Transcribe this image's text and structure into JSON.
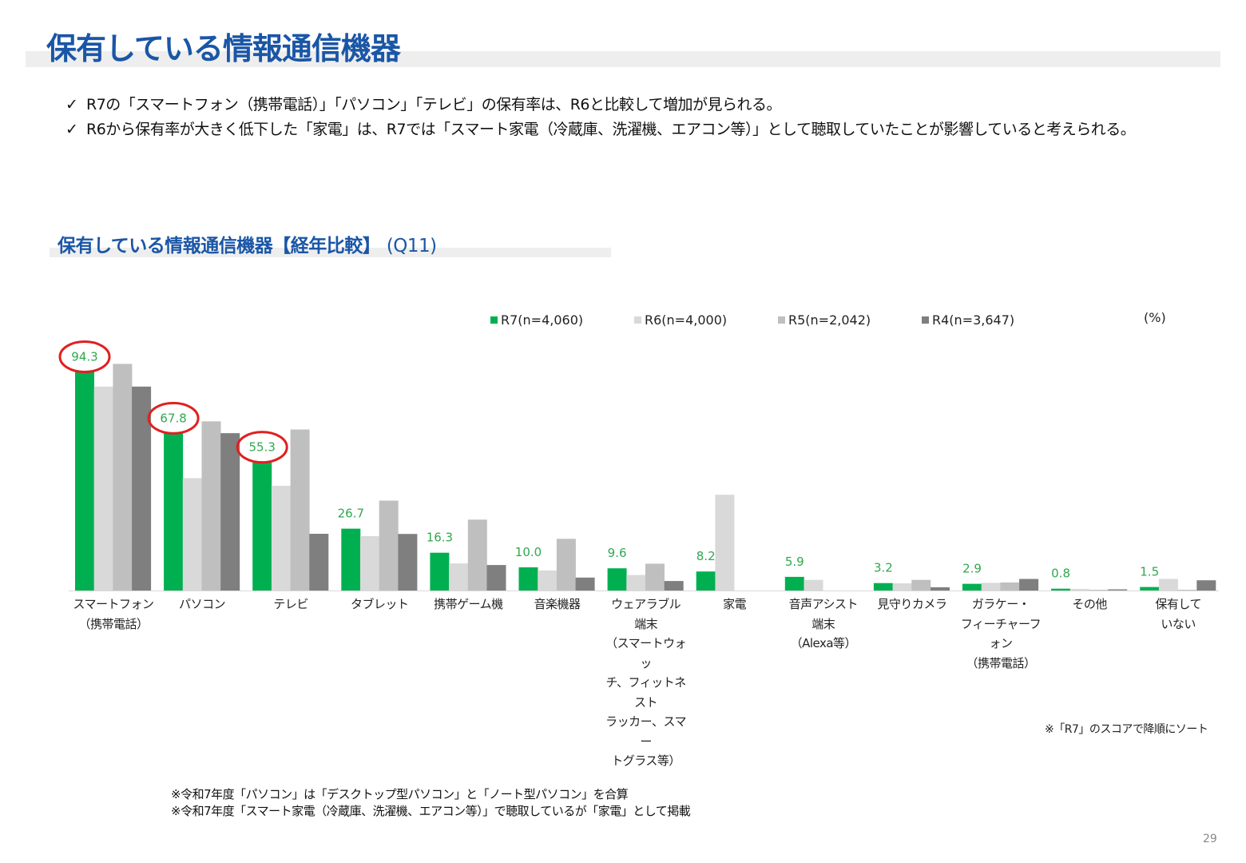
{
  "page": {
    "title": "保有している情報通信機器",
    "bullets": [
      "R7の「スマートフォン（携帯電話）」「パソコン」「テレビ」の保有率は、R6と比較して増加が見られる。",
      "R6から保有率が大きく低下した「家電」は、R7では「スマート家電（冷蔵庫、洗濯機、エアコン等）」として聴取していたことが影響していると考えられる。"
    ],
    "check_glyph": "✓",
    "section_title": "保有している情報通信機器【経年比較】",
    "section_question": "(Q11)",
    "unit": "(%)",
    "sort_note": "※「R7」のスコアで降順にソート",
    "footnotes": [
      "※令和7年度「パソコン」は「デスクトップ型パソコン」と「ノート型パソコン」を合算",
      "※令和7年度「スマート家電（冷蔵庫、洗濯機、エアコン等）」で聴取しているが「家電」として掲載"
    ],
    "page_number": "29"
  },
  "colors": {
    "title": "#1a56a6",
    "highlight_circle": "#e02020",
    "data_label": "#2fa84f"
  },
  "chart_data": {
    "type": "bar",
    "categories": [
      "スマートフォン\n（携帯電話）",
      "パソコン",
      "テレビ",
      "タブレット",
      "携帯ゲーム機",
      "音楽機器",
      "ウェアラブル\n端末\n（スマートウォッ\nチ、フィットネスト\nラッカー、スマー\nトグラス等）",
      "家電",
      "音声アシスト\n端末\n（Alexa等）",
      "見守りカメラ",
      "ガラケー・\nフィーチャーフォン\n（携帯電話）",
      "その他",
      "保有して\nいない"
    ],
    "series": [
      {
        "name": "R7(n=4,060)",
        "color": "#00b050",
        "values": [
          94.3,
          67.8,
          55.3,
          26.7,
          16.3,
          10.0,
          9.6,
          8.2,
          5.9,
          3.2,
          2.9,
          0.8,
          1.5
        ]
      },
      {
        "name": "R6(n=4,000)",
        "color": "#d9d9d9",
        "values": [
          88.0,
          48.5,
          45.2,
          23.5,
          11.7,
          8.7,
          6.7,
          41.3,
          4.6,
          3.1,
          3.3,
          0.7,
          5.0
        ]
      },
      {
        "name": "R5(n=2,042)",
        "color": "#bfbfbf",
        "values": [
          97.8,
          73.0,
          69.5,
          38.8,
          30.6,
          22.3,
          11.6,
          null,
          null,
          4.6,
          3.5,
          0.3,
          0.3
        ]
      },
      {
        "name": "R4(n=3,647)",
        "color": "#7f7f7f",
        "values": [
          88.0,
          67.9,
          24.5,
          24.4,
          11.0,
          5.6,
          4.1,
          null,
          null,
          1.4,
          5.0,
          0.5,
          4.4
        ]
      }
    ],
    "data_labels": [
      "94.3",
      "67.8",
      "55.3",
      "26.7",
      "16.3",
      "10.0",
      "9.6",
      "8.2",
      "5.9",
      "3.2",
      "2.9",
      "0.8",
      "1.5"
    ],
    "highlighted_categories": [
      0,
      1,
      2
    ],
    "ylim": [
      0,
      100
    ],
    "grid": false,
    "legend_position": "top"
  }
}
